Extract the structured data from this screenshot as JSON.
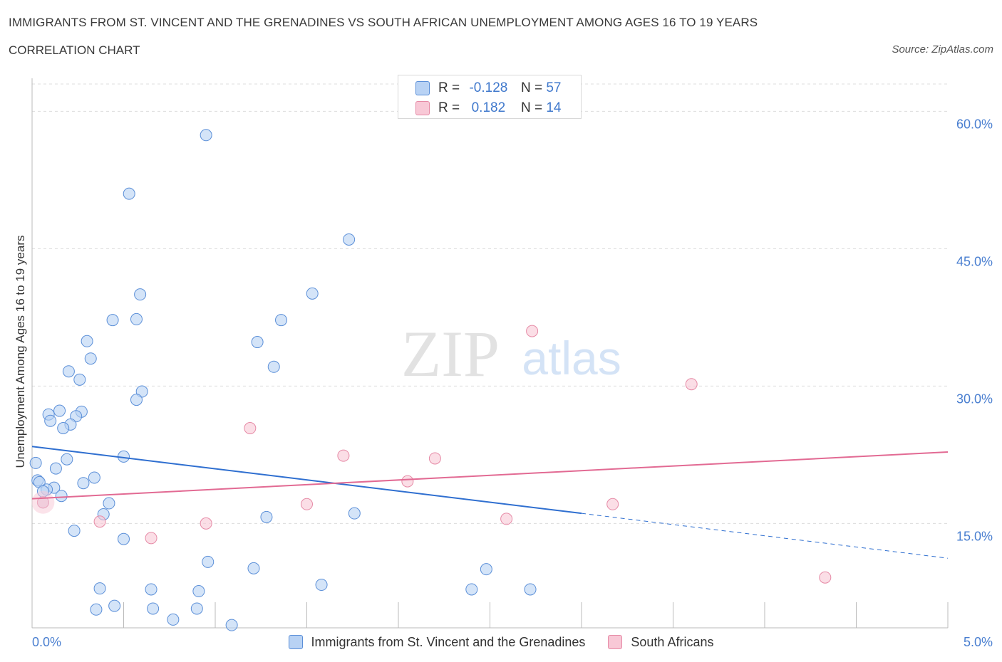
{
  "title": "IMMIGRANTS FROM ST. VINCENT AND THE GRENADINES VS SOUTH AFRICAN UNEMPLOYMENT AMONG AGES 16 TO 19 YEARS",
  "subtitle": "CORRELATION CHART",
  "source": "Source: ZipAtlas.com",
  "watermark": {
    "zip": "ZIP",
    "atlas": "atlas"
  },
  "colors": {
    "blue_fill": "#b8d2f4",
    "blue_stroke": "#5b8fd8",
    "blue_line": "#2f6fd0",
    "pink_fill": "#f8c8d6",
    "pink_stroke": "#e68aa6",
    "pink_line": "#e26a93",
    "tick_text": "#4a7fd0",
    "grid": "#dcdcdc"
  },
  "legend_top": {
    "rows": [
      {
        "r_label": "R =",
        "r_value": "-0.128",
        "n_label": "N =",
        "n_value": "57",
        "color": "blue"
      },
      {
        "r_label": "R =",
        "r_value": "0.182",
        "n_label": "N =",
        "n_value": "14",
        "color": "pink"
      }
    ]
  },
  "legend_bottom": [
    {
      "label": "Immigrants from St. Vincent and the Grenadines",
      "color": "blue"
    },
    {
      "label": "South Africans",
      "color": "pink"
    }
  ],
  "chart_data": {
    "type": "scatter",
    "title": "IMMIGRANTS FROM ST. VINCENT AND THE GRENADINES VS SOUTH AFRICAN UNEMPLOYMENT AMONG AGES 16 TO 19 YEARS",
    "xlabel": "",
    "ylabel": "Unemployment Among Ages 16 to 19 years",
    "xlim": [
      0,
      5
    ],
    "ylim": [
      3.6,
      63.6
    ],
    "x_ticks_labeled": [
      {
        "value": 0,
        "label": "0.0%"
      },
      {
        "value": 5,
        "label": "5.0%"
      }
    ],
    "y_ticks": [
      {
        "value": 15,
        "label": "15.0%"
      },
      {
        "value": 30,
        "label": "30.0%"
      },
      {
        "value": 45,
        "label": "45.0%"
      },
      {
        "value": 60,
        "label": "60.0%"
      }
    ],
    "grid": "horizontal dashed",
    "legend_position": "bottom-center",
    "series": [
      {
        "name": "Immigrants from St. Vincent and the Grenadines",
        "color": "blue",
        "points": [
          [
            0.95,
            57.4
          ],
          [
            0.53,
            51.0
          ],
          [
            1.73,
            46.0
          ],
          [
            0.59,
            40.0
          ],
          [
            1.53,
            40.1
          ],
          [
            0.44,
            37.2
          ],
          [
            0.57,
            37.3
          ],
          [
            1.36,
            37.2
          ],
          [
            0.3,
            34.9
          ],
          [
            1.23,
            34.8
          ],
          [
            0.32,
            33.0
          ],
          [
            1.32,
            32.1
          ],
          [
            0.2,
            31.6
          ],
          [
            0.26,
            30.7
          ],
          [
            0.6,
            29.4
          ],
          [
            0.57,
            28.5
          ],
          [
            0.15,
            27.3
          ],
          [
            0.27,
            27.2
          ],
          [
            0.09,
            26.9
          ],
          [
            0.24,
            26.7
          ],
          [
            0.1,
            26.2
          ],
          [
            0.21,
            25.8
          ],
          [
            0.17,
            25.4
          ],
          [
            0.5,
            22.3
          ],
          [
            0.19,
            22.0
          ],
          [
            0.02,
            21.6
          ],
          [
            0.13,
            21.0
          ],
          [
            0.34,
            20.0
          ],
          [
            0.03,
            19.7
          ],
          [
            0.04,
            19.5
          ],
          [
            0.28,
            19.4
          ],
          [
            0.12,
            18.9
          ],
          [
            0.08,
            18.7
          ],
          [
            0.06,
            18.5
          ],
          [
            0.16,
            18.0
          ],
          [
            0.06,
            17.3
          ],
          [
            0.42,
            17.2
          ],
          [
            0.39,
            16.0
          ],
          [
            1.28,
            15.7
          ],
          [
            1.76,
            16.1
          ],
          [
            0.23,
            14.2
          ],
          [
            0.5,
            13.3
          ],
          [
            0.96,
            10.8
          ],
          [
            1.21,
            10.1
          ],
          [
            2.48,
            10.0
          ],
          [
            1.58,
            8.3
          ],
          [
            0.37,
            7.9
          ],
          [
            0.65,
            7.8
          ],
          [
            0.91,
            7.6
          ],
          [
            2.4,
            7.8
          ],
          [
            2.72,
            7.8
          ],
          [
            0.45,
            6.0
          ],
          [
            0.35,
            5.6
          ],
          [
            0.66,
            5.7
          ],
          [
            0.9,
            5.7
          ],
          [
            0.77,
            4.5
          ],
          [
            1.09,
            3.9
          ]
        ]
      },
      {
        "name": "South Africans",
        "color": "pink",
        "points": [
          [
            2.73,
            36.0
          ],
          [
            3.6,
            30.2
          ],
          [
            1.19,
            25.4
          ],
          [
            1.7,
            22.4
          ],
          [
            2.2,
            22.1
          ],
          [
            2.05,
            19.6
          ],
          [
            0.06,
            17.3
          ],
          [
            1.5,
            17.1
          ],
          [
            3.17,
            17.1
          ],
          [
            0.37,
            15.2
          ],
          [
            0.95,
            15.0
          ],
          [
            2.59,
            15.5
          ],
          [
            0.65,
            13.4
          ],
          [
            4.33,
            9.1
          ]
        ]
      }
    ],
    "trend_lines": [
      {
        "series": "Immigrants from St. Vincent and the Grenadines",
        "solid": [
          [
            0,
            23.4
          ],
          [
            3.0,
            16.1
          ]
        ],
        "dashed": [
          [
            3.0,
            16.1
          ],
          [
            5.0,
            11.2
          ]
        ]
      },
      {
        "series": "South Africans",
        "solid": [
          [
            0,
            17.7
          ],
          [
            5.0,
            22.8
          ]
        ]
      }
    ]
  }
}
